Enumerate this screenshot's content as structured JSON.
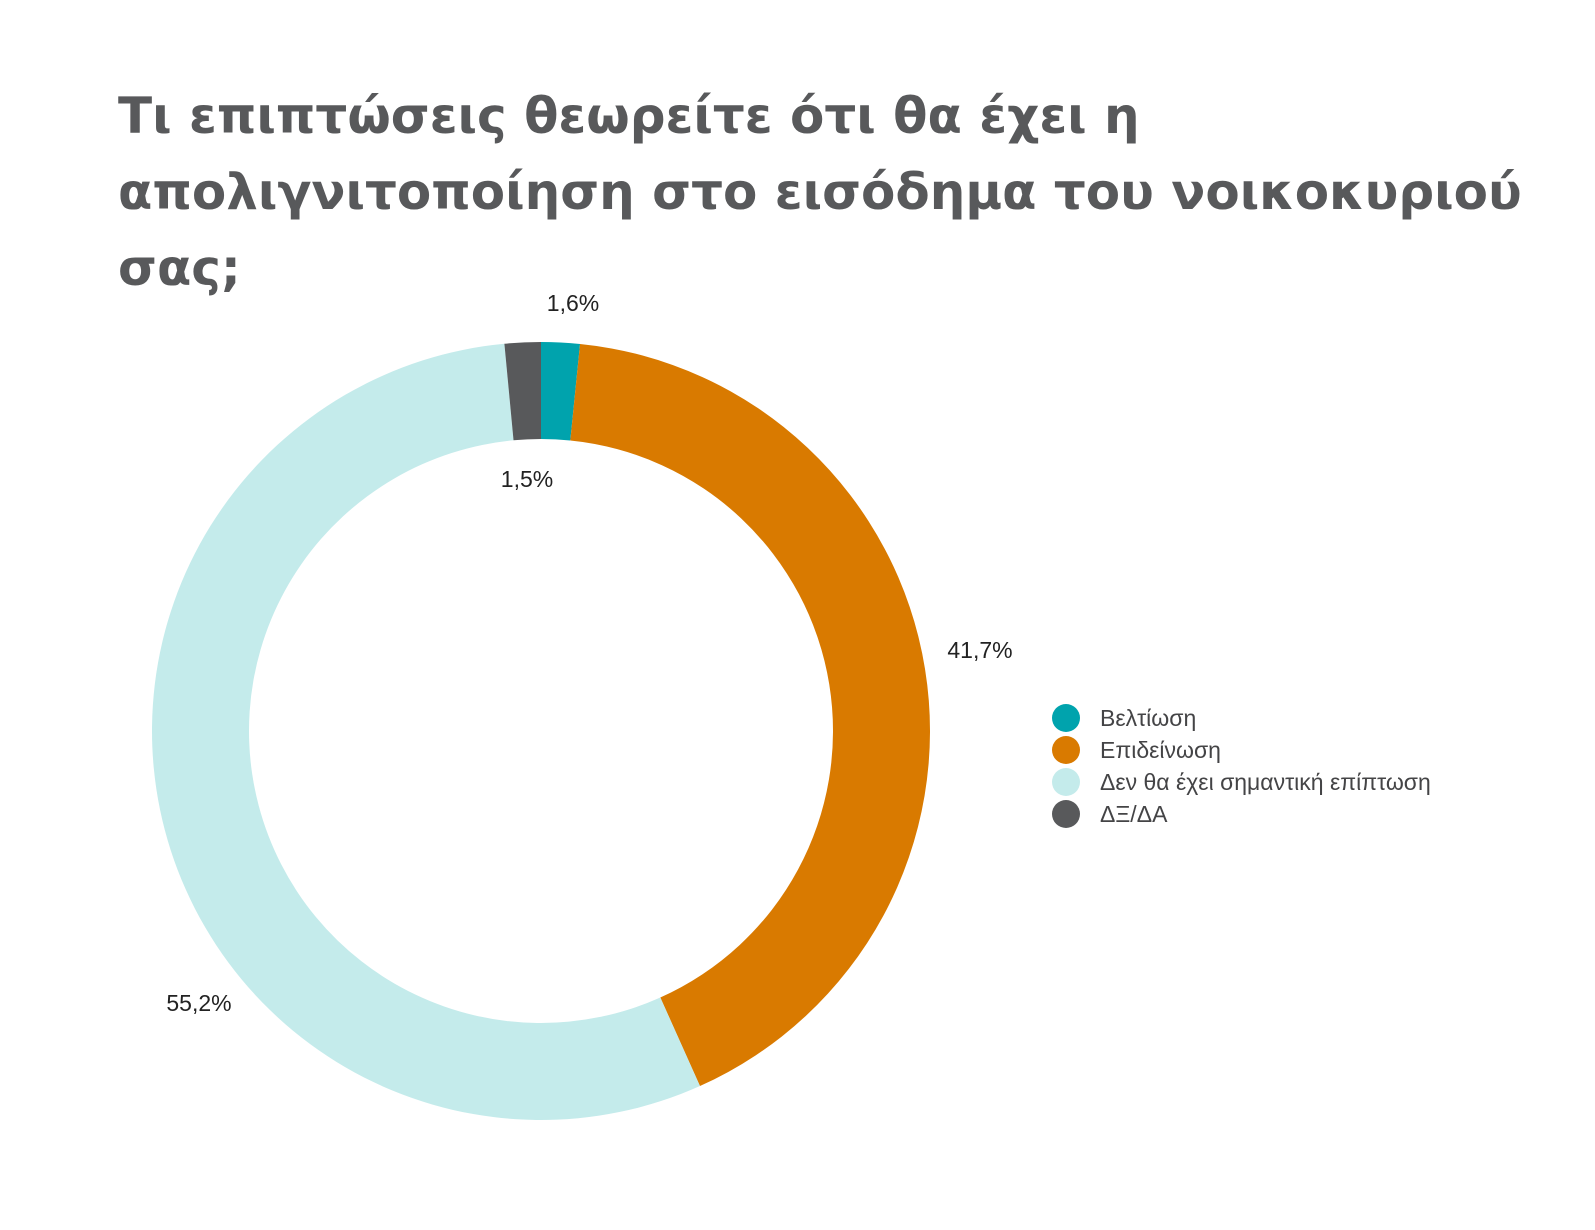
{
  "chart_data": {
    "type": "pie",
    "style": "donut",
    "title": "Τι επιπτώσεις θεωρείτε ότι θα έχει η απολιγνιτοποίηση στο εισόδημα του νοικοκυριού σας;",
    "slices": [
      {
        "name": "Βελτίωση",
        "value": 1.6,
        "label": "1,6%",
        "color": "#00a3ad"
      },
      {
        "name": "Επιδείνωση",
        "value": 41.7,
        "label": "41,7%",
        "color": "#d97a00"
      },
      {
        "name": "Δεν θα έχει σημαντική επίπτωση",
        "value": 55.2,
        "label": "55,2%",
        "color": "#c4ebeb"
      },
      {
        "name": "ΔΞ/ΔΑ",
        "value": 1.5,
        "label": "1,5%",
        "color": "#58595b"
      }
    ],
    "legend_position": "right"
  }
}
